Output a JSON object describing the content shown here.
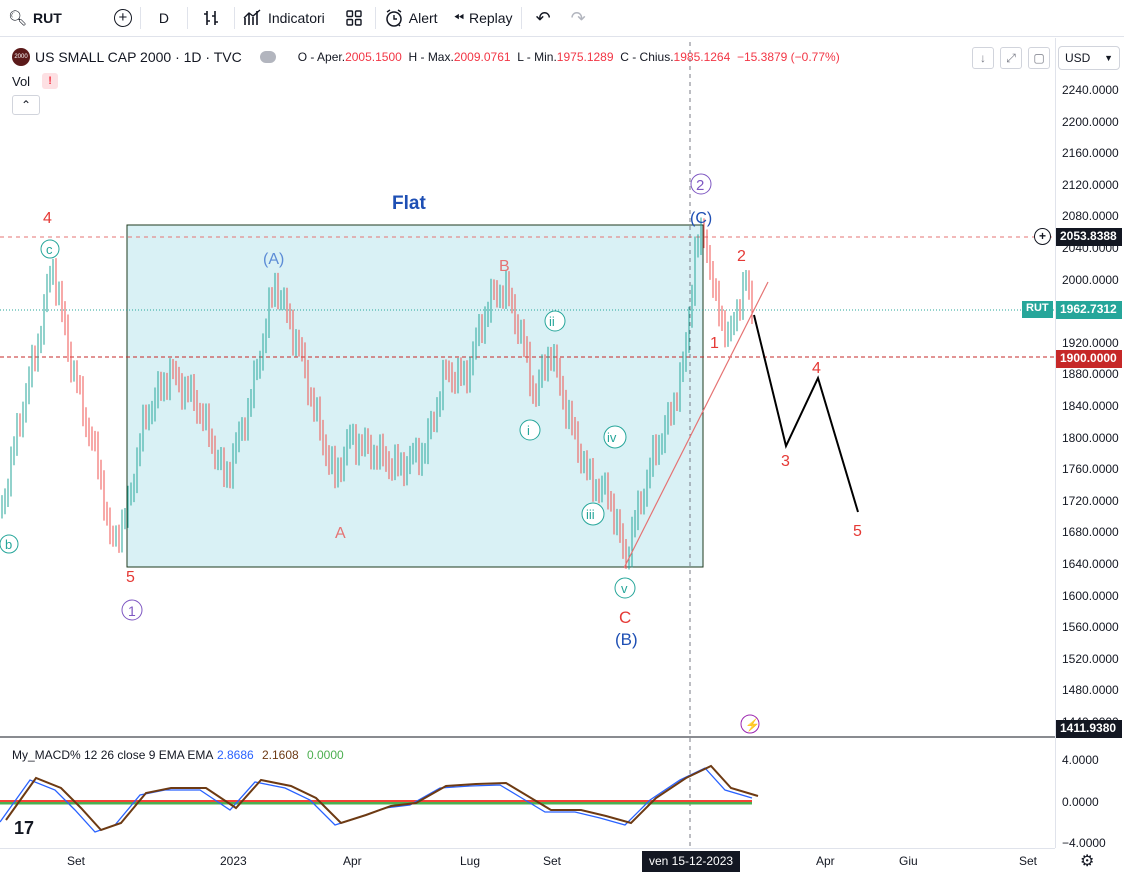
{
  "toolbar": {
    "symbol": "RUT",
    "interval": "D",
    "indicators_label": "Indicatori",
    "alert_label": "Alert",
    "replay_label": "Replay"
  },
  "legend": {
    "title": "US SMALL CAP 2000 · 1D · TVC",
    "logo_text": "2000",
    "open_label": "O - Aper.",
    "open": "2005.1500",
    "high_label": "H - Max.",
    "high": "2009.0761",
    "low_label": "L - Min.",
    "low": "1975.1289",
    "close_label": "C - Chius.",
    "close": "1985.1264",
    "change": "−15.3879 (−0.77%)",
    "vol_label": "Vol",
    "vol_warning": "!"
  },
  "currency": "USD",
  "price_axis": {
    "ticks": [
      "2240.0000",
      "2200.0000",
      "2160.0000",
      "2120.0000",
      "2080.0000",
      "2040.0000",
      "2000.0000",
      "1960.0000",
      "1920.0000",
      "1880.0000",
      "1840.0000",
      "1800.0000",
      "1760.0000",
      "1720.0000",
      "1680.0000",
      "1640.0000",
      "1600.0000",
      "1560.0000",
      "1520.0000",
      "1480.0000",
      "1440.0000"
    ],
    "badge_top": "2053.8388",
    "badge_rut_label": "RUT",
    "badge_rut": "1962.7312",
    "badge_level": "1900.0000",
    "badge_low": "1411.9380"
  },
  "macd": {
    "label": "My_MACD% 12 26 close 9 EMA EMA",
    "v1": "2.8686",
    "v2": "2.1608",
    "v3": "0.0000",
    "ticks": [
      "4.0000",
      "0.0000",
      "−4.0000"
    ]
  },
  "time_axis": {
    "labels": [
      "Set",
      "2023",
      "Apr",
      "Lug",
      "Set",
      "Apr",
      "Giu",
      "Set"
    ],
    "crosshair": "ven 15-12-2023"
  },
  "annotations": {
    "flat": "Flat",
    "w4_left": "4",
    "c_small": "c",
    "b_small": "b",
    "w5_left": "5",
    "w1_circle": "1",
    "A_paren": "(A)",
    "A": "A",
    "B": "B",
    "ii": "ii",
    "i": "i",
    "iv": "iv",
    "iii": "iii",
    "v": "v",
    "C": "C",
    "B_paren": "(B)",
    "w2_circle": "2",
    "C_paren": "(C)",
    "f1": "1",
    "f2": "2",
    "f3": "3",
    "f4": "4",
    "f5": "5"
  }
}
